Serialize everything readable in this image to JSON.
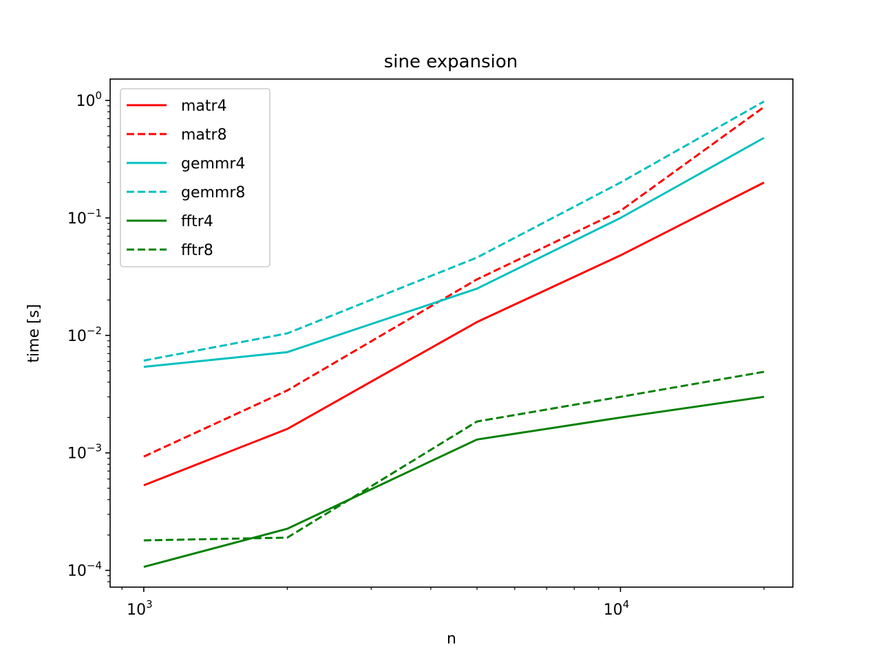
{
  "chart_data": {
    "type": "line",
    "title": "sine expansion",
    "xlabel": "n",
    "ylabel": "time [s]",
    "xscale": "log",
    "yscale": "log",
    "xlim": [
      850,
      23000
    ],
    "ylim": [
      7.2e-05,
      1.52
    ],
    "xticks": [
      {
        "value": 1000,
        "base": "10",
        "exp": "3"
      },
      {
        "value": 10000,
        "base": "10",
        "exp": "4"
      }
    ],
    "yticks": [
      {
        "value": 0.0001,
        "base": "10",
        "exp": "−4"
      },
      {
        "value": 0.001,
        "base": "10",
        "exp": "−3"
      },
      {
        "value": 0.01,
        "base": "10",
        "exp": "−2"
      },
      {
        "value": 0.1,
        "base": "10",
        "exp": "−1"
      },
      {
        "value": 1,
        "base": "10",
        "exp": "0"
      }
    ],
    "grid": false,
    "legend": "upper left",
    "x": [
      1000,
      2000,
      5000,
      10000,
      20000
    ],
    "series": [
      {
        "name": "matr4",
        "color": "#ff0000",
        "dash": "solid",
        "values": [
          0.00053,
          0.0016,
          0.013,
          0.048,
          0.2
        ]
      },
      {
        "name": "matr8",
        "color": "#ff0000",
        "dash": "dashed",
        "values": [
          0.00093,
          0.0034,
          0.03,
          0.115,
          0.88
        ]
      },
      {
        "name": "gemmr4",
        "color": "#00bfbf",
        "dash": "solid",
        "values": [
          0.0054,
          0.0072,
          0.025,
          0.1,
          0.48
        ]
      },
      {
        "name": "gemmr8",
        "color": "#00bfbf",
        "dash": "dashed",
        "values": [
          0.0061,
          0.0104,
          0.046,
          0.2,
          0.98
        ]
      },
      {
        "name": "fftr4",
        "color": "#008000",
        "dash": "solid",
        "values": [
          0.000107,
          0.000226,
          0.0013,
          0.002,
          0.003
        ]
      },
      {
        "name": "fftr8",
        "color": "#008000",
        "dash": "dashed",
        "values": [
          0.00018,
          0.00019,
          0.00185,
          0.003,
          0.0049
        ]
      }
    ]
  }
}
